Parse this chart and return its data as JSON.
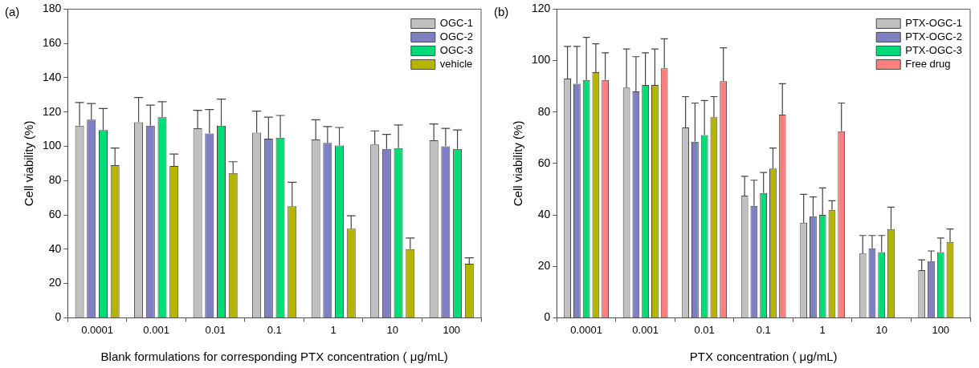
{
  "chart_data": [
    {
      "type": "bar",
      "annotations": [
        "(a)"
      ],
      "xlabel": "Blank formulations for corresponding PTX concentration ( μg/mL)",
      "ylabel": "Cell viability (%)",
      "categories": [
        "0.0001",
        "0.001",
        "0.01",
        "0.1",
        "1",
        "10",
        "100"
      ],
      "ylim": [
        0,
        180
      ],
      "yticks": [
        0,
        20,
        40,
        60,
        80,
        100,
        120,
        140,
        160,
        180
      ],
      "legend": "top right",
      "series": [
        {
          "name": "OGC-1",
          "color": "#c0c0c0",
          "values": [
            112,
            114,
            110.5,
            108,
            104,
            101,
            103.5
          ],
          "errors": [
            [
              112,
              125.5
            ],
            [
              114,
              128.5
            ],
            [
              110.5,
              121
            ],
            [
              108,
              120.5
            ],
            [
              104,
              115.5
            ],
            [
              101,
              109
            ],
            [
              103.5,
              113
            ]
          ]
        },
        {
          "name": "OGC-2",
          "color": "#7f7fc4",
          "values": [
            115.5,
            112,
            107.5,
            104.5,
            102,
            98.5,
            100
          ],
          "errors": [
            [
              115.5,
              125
            ],
            [
              112,
              124
            ],
            [
              107.5,
              121.5
            ],
            [
              104.5,
              117
            ],
            [
              102,
              111.5
            ],
            [
              98.5,
              107
            ],
            [
              100,
              110.5
            ]
          ]
        },
        {
          "name": "OGC-3",
          "color": "#00dd77",
          "values": [
            109.5,
            117,
            112,
            105,
            100.5,
            99,
            98.5
          ],
          "errors": [
            [
              109.5,
              122
            ],
            [
              117,
              126
            ],
            [
              112,
              127.5
            ],
            [
              105,
              118
            ],
            [
              100.5,
              111
            ],
            [
              99,
              112.5
            ],
            [
              98.5,
              109.5
            ]
          ]
        },
        {
          "name": "vehicle",
          "color": "#b5b500",
          "values": [
            89,
            88.5,
            84.5,
            65,
            52,
            40,
            31.5
          ],
          "errors": [
            [
              89,
              99
            ],
            [
              88.5,
              95.5
            ],
            [
              84.5,
              91
            ],
            [
              65,
              79
            ],
            [
              52,
              59.5
            ],
            [
              40,
              46.5
            ],
            [
              31.5,
              35
            ]
          ]
        }
      ]
    },
    {
      "type": "bar",
      "annotations": [
        "(b)"
      ],
      "xlabel": "PTX concentration ( μg/mL)",
      "ylabel": "Cell viability (%)",
      "categories": [
        "0.0001",
        "0.001",
        "0.01",
        "0.1",
        "1",
        "10",
        "100"
      ],
      "ylim": [
        0,
        120
      ],
      "yticks": [
        0,
        20,
        40,
        60,
        80,
        100,
        120
      ],
      "legend": "top right",
      "series": [
        {
          "name": "PTX-OGC-1",
          "color": "#c0c0c0",
          "values": [
            93,
            89.5,
            74,
            47.5,
            37,
            25,
            18.5
          ],
          "errors": [
            [
              93,
              105.5
            ],
            [
              89.5,
              104.5
            ],
            [
              74,
              86
            ],
            [
              47.5,
              55
            ],
            [
              37,
              48
            ],
            [
              25,
              32
            ],
            [
              18.5,
              22.5
            ]
          ]
        },
        {
          "name": "PTX-OGC-2",
          "color": "#7f7fc4",
          "values": [
            91,
            88,
            68.5,
            43.5,
            39.5,
            27,
            22
          ],
          "errors": [
            [
              91,
              105.5
            ],
            [
              88,
              101.5
            ],
            [
              68.5,
              83.5
            ],
            [
              43.5,
              53.5
            ],
            [
              39.5,
              47
            ],
            [
              27,
              32
            ],
            [
              22,
              26
            ]
          ]
        },
        {
          "name": "PTX-OGC-3",
          "color": "#00dd77",
          "values": [
            92.5,
            90.5,
            71,
            48.5,
            40,
            25.5,
            25.5
          ],
          "errors": [
            [
              92.5,
              109
            ],
            [
              90.5,
              103
            ],
            [
              71,
              84.5
            ],
            [
              48.5,
              56.5
            ],
            [
              40,
              50.5
            ],
            [
              25.5,
              32
            ],
            [
              25.5,
              31
            ]
          ]
        },
        {
          "color": "#b5b500",
          "values": [
            95.5,
            90.5,
            78,
            58,
            42,
            34.5,
            29.5
          ],
          "errors": [
            [
              95.5,
              106.5
            ],
            [
              90.5,
              104.5
            ],
            [
              78,
              86
            ],
            [
              58,
              66
            ],
            [
              42,
              45.5
            ],
            [
              34.5,
              43
            ],
            [
              29.5,
              34.5
            ]
          ]
        },
        {
          "name": "Free drug",
          "color": "#ff7f7f",
          "values": [
            92.5,
            97,
            92,
            79,
            72.5,
            null,
            null
          ],
          "errors": [
            [
              92.5,
              103
            ],
            [
              97,
              108.5
            ],
            [
              92,
              105
            ],
            [
              79,
              91
            ],
            [
              72.5,
              83.5
            ],
            null,
            null
          ]
        }
      ]
    }
  ]
}
